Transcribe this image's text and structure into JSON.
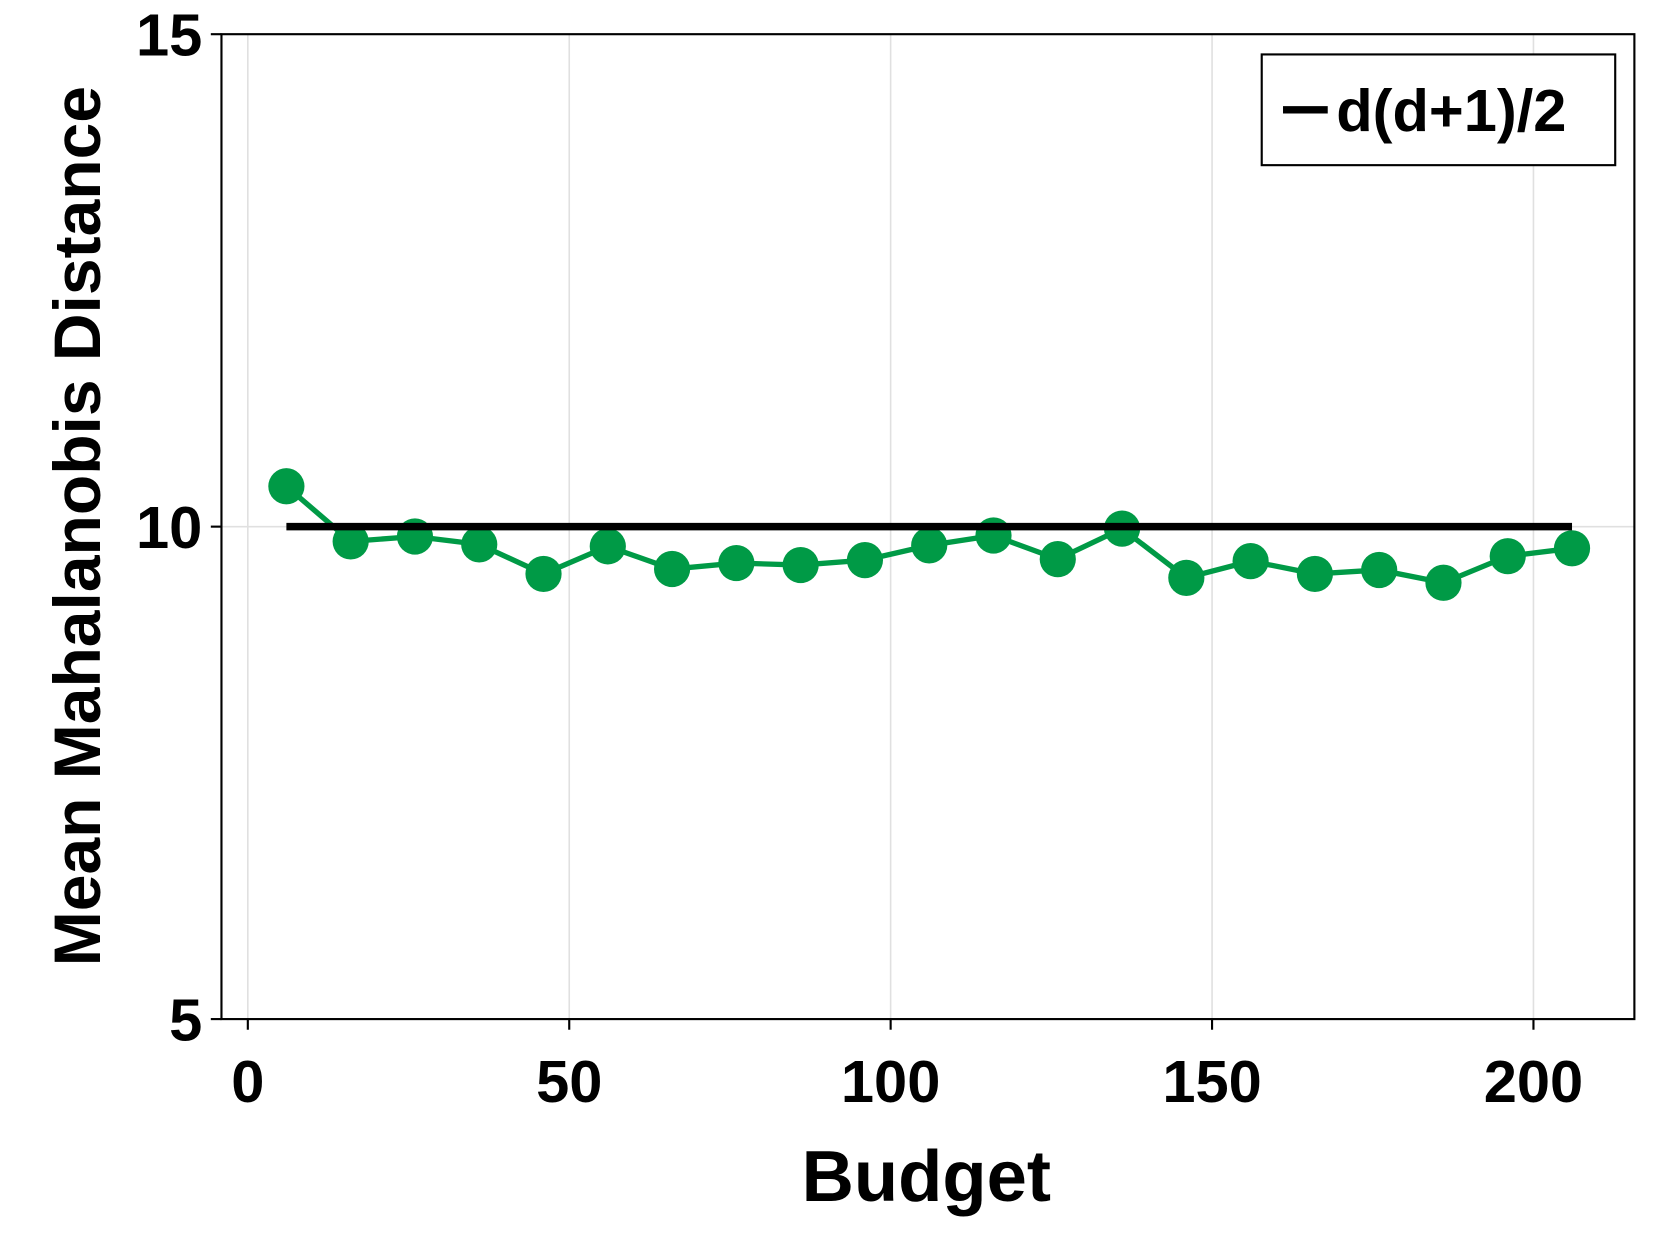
{
  "chart_data": {
    "type": "line",
    "xlabel": "Budget",
    "ylabel": "Mean Mahalanobis Distance",
    "xlim": [
      -4.1,
      215.7
    ],
    "ylim": [
      5,
      15
    ],
    "xticks": [
      0,
      50,
      100,
      150,
      200
    ],
    "yticks": [
      5,
      10,
      15
    ],
    "grid": true,
    "legend": "upper right",
    "series": [
      {
        "color": "#009a46",
        "markers": true,
        "x": [
          6,
          16,
          26,
          36,
          46,
          56,
          66,
          76,
          86,
          96,
          106,
          116,
          126,
          136,
          146,
          156,
          166,
          176,
          186,
          196,
          206
        ],
        "values": [
          10.41,
          9.85,
          9.9,
          9.82,
          9.52,
          9.8,
          9.57,
          9.63,
          9.61,
          9.66,
          9.81,
          9.91,
          9.67,
          9.98,
          9.48,
          9.65,
          9.52,
          9.56,
          9.43,
          9.7,
          9.78
        ]
      },
      {
        "name": "d(d+1)/2",
        "color": "#000000",
        "markers": false,
        "x": [
          6,
          206
        ],
        "values": [
          10,
          10
        ]
      }
    ]
  }
}
